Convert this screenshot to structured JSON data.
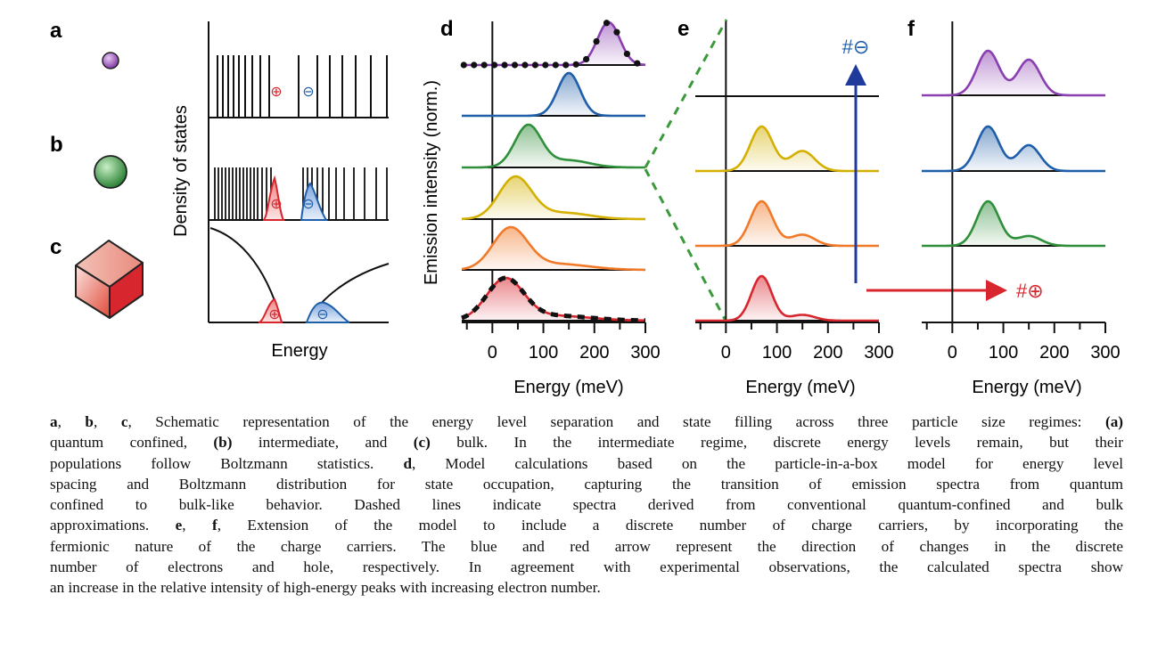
{
  "figure": {
    "panel_labels": {
      "a": "a",
      "b": "b",
      "c": "c",
      "d": "d",
      "e": "e",
      "f": "f"
    },
    "dos_panel": {
      "ylabel": "Density of states",
      "xlabel": "Energy",
      "hole_symbol": "⊕",
      "electron_symbol": "⊖"
    },
    "panel_d": {
      "ylabel": "Emission intensity (norm.)",
      "xlabel": "Energy (meV)",
      "ticks": [
        "0",
        "100",
        "200",
        "300"
      ]
    },
    "panel_e": {
      "xlabel": "Energy (meV)",
      "ticks": [
        "0",
        "100",
        "200",
        "300"
      ],
      "arrow_label": "#⊖"
    },
    "panel_f": {
      "xlabel": "Energy (meV)",
      "ticks": [
        "0",
        "100",
        "200",
        "300"
      ],
      "arrow_label": "#⊕"
    },
    "colors": {
      "purple": "#8a3fb0",
      "blue": "#1f5ea8",
      "green": "#2f8f3a",
      "yellow": "#d4b000",
      "orange": "#f07a2a",
      "red": "#d8262e",
      "arrow_blue": "#1f3a9a",
      "arrow_red": "#d8262e",
      "dash_green": "#3a9a3a"
    }
  },
  "chart_data": [
    {
      "type": "line",
      "panel": "d",
      "xlabel": "Energy (meV)",
      "ylabel": "Emission intensity (norm.)",
      "xlim": [
        -60,
        300
      ],
      "series": [
        {
          "color": "purple",
          "peaks": [
            {
              "e": 228,
              "w": 22,
              "a": 1.0
            }
          ]
        },
        {
          "color": "blue",
          "peaks": [
            {
              "e": 150,
              "w": 22,
              "a": 1.0
            }
          ]
        },
        {
          "color": "green",
          "peaks": [
            {
              "e": 70,
              "w": 26,
              "a": 1.0
            },
            {
              "e": 150,
              "w": 40,
              "a": 0.17
            }
          ]
        },
        {
          "color": "yellow",
          "peaks": [
            {
              "e": 45,
              "w": 32,
              "a": 1.0
            },
            {
              "e": 140,
              "w": 50,
              "a": 0.15
            }
          ]
        },
        {
          "color": "orange",
          "peaks": [
            {
              "e": 35,
              "w": 34,
              "a": 1.0
            },
            {
              "e": 130,
              "w": 60,
              "a": 0.14
            }
          ]
        },
        {
          "color": "red",
          "peaks": [
            {
              "e": 25,
              "w": 36,
              "a": 1.0
            },
            {
              "e": 120,
              "w": 70,
              "a": 0.12
            }
          ]
        }
      ]
    },
    {
      "type": "line",
      "panel": "e",
      "xlabel": "Energy (meV)",
      "xlim": [
        -60,
        300
      ],
      "series": [
        {
          "color": "yellow",
          "peaks": [
            {
              "e": 70,
              "w": 22,
              "a": 1.0
            },
            {
              "e": 150,
              "w": 24,
              "a": 0.45
            }
          ]
        },
        {
          "color": "orange",
          "peaks": [
            {
              "e": 70,
              "w": 22,
              "a": 1.0
            },
            {
              "e": 150,
              "w": 24,
              "a": 0.25
            }
          ]
        },
        {
          "color": "red",
          "peaks": [
            {
              "e": 70,
              "w": 20,
              "a": 1.0
            },
            {
              "e": 150,
              "w": 24,
              "a": 0.13
            }
          ]
        }
      ]
    },
    {
      "type": "line",
      "panel": "f",
      "xlabel": "Energy (meV)",
      "xlim": [
        -60,
        300
      ],
      "series": [
        {
          "color": "purple",
          "peaks": [
            {
              "e": 70,
              "w": 22,
              "a": 1.0
            },
            {
              "e": 150,
              "w": 22,
              "a": 0.8
            }
          ]
        },
        {
          "color": "blue",
          "peaks": [
            {
              "e": 70,
              "w": 22,
              "a": 1.0
            },
            {
              "e": 150,
              "w": 22,
              "a": 0.58
            }
          ]
        },
        {
          "color": "green",
          "peaks": [
            {
              "e": 70,
              "w": 22,
              "a": 1.0
            },
            {
              "e": 150,
              "w": 24,
              "a": 0.22
            }
          ]
        }
      ]
    }
  ],
  "caption": {
    "lines": [
      [
        [
          "b",
          "a"
        ],
        [
          "t",
          ", "
        ],
        [
          "b",
          "b"
        ],
        [
          "t",
          ", "
        ],
        [
          "b",
          "c"
        ],
        [
          "t",
          ", Schematic representation of the energy level separation and state filling across three particle size regimes: "
        ],
        [
          "b",
          "(a)"
        ]
      ],
      [
        [
          "t",
          "quantum confined, "
        ],
        [
          "b",
          "(b)"
        ],
        [
          "t",
          " intermediate, and "
        ],
        [
          "b",
          "(c)"
        ],
        [
          "t",
          " bulk. In the intermediate regime, discrete energy levels remain, but their"
        ]
      ],
      [
        [
          "t",
          "populations follow Boltzmann statistics. "
        ],
        [
          "b",
          "d"
        ],
        [
          "t",
          ", Model calculations based on the particle-in-a-box model for energy level"
        ]
      ],
      [
        [
          "t",
          "spacing and Boltzmann distribution for state occupation, capturing the transition of emission spectra from quantum"
        ]
      ],
      [
        [
          "t",
          "confined to bulk-like behavior. Dashed lines indicate spectra derived from conventional quantum-confined and bulk"
        ]
      ],
      [
        [
          "t",
          "approximations. "
        ],
        [
          "b",
          "e"
        ],
        [
          "t",
          ", "
        ],
        [
          "b",
          "f"
        ],
        [
          "t",
          ", Extension of the model to include a discrete number of charge carriers, by incorporating the"
        ]
      ],
      [
        [
          "t",
          "fermionic nature of the charge carriers. The blue and red arrow represent the direction of changes in the discrete"
        ]
      ],
      [
        [
          "t",
          "number of electrons and hole, respectively. In agreement with experimental observations, the calculated spectra show"
        ]
      ],
      [
        [
          "t",
          "an increase in the relative intensity of high-energy peaks with increasing electron number."
        ]
      ]
    ]
  }
}
